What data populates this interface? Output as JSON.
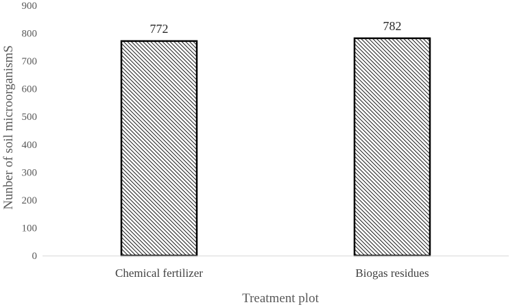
{
  "chart_data": {
    "type": "bar",
    "categories": [
      "Chemical fertilizer",
      "Biogas residues"
    ],
    "values": [
      772,
      782
    ],
    "data_labels": [
      "772",
      "782"
    ],
    "xlabel": "Treatment plot",
    "ylabel": "Nunber of soil microorganismS",
    "ylim": [
      0,
      900
    ],
    "yticks": [
      0,
      100,
      200,
      300,
      400,
      500,
      600,
      700,
      800,
      900
    ],
    "grid": false,
    "legend": "none",
    "bar_fill": "diagonal-hatch",
    "colors": {
      "bar_edge": "#000000",
      "hatch": "#000000",
      "axis": "#d9d9d9",
      "tick_text": "#595959"
    }
  }
}
